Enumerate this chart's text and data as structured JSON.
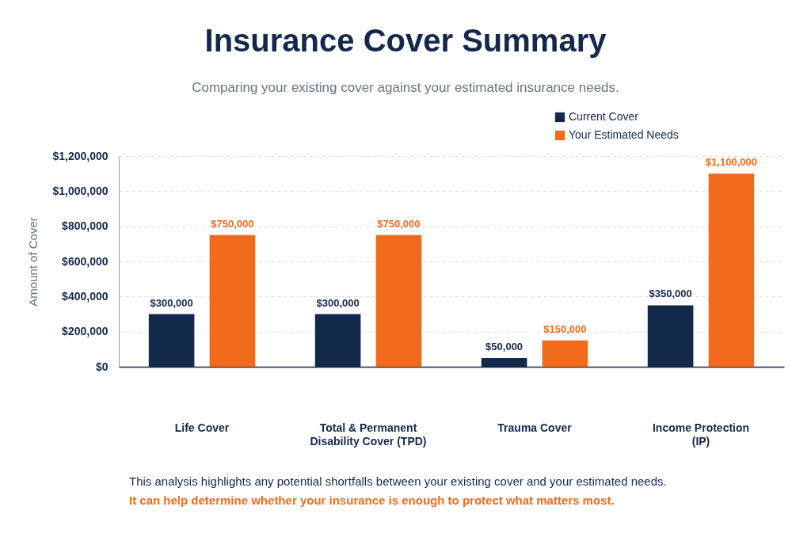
{
  "chart_data": {
    "type": "bar",
    "title": "Insurance Cover Summary",
    "subtitle": "Comparing your existing cover against your estimated insurance needs.",
    "ylabel": "Amount of Cover",
    "categories": [
      "Life Cover",
      "Total & Permanent\nDisability Cover (TPD)",
      "Trauma Cover",
      "Income Protection\n(IP)"
    ],
    "series": [
      {
        "name": "Current Cover",
        "color": "#13294b",
        "values": [
          300000,
          300000,
          50000,
          350000
        ],
        "value_labels": [
          "$300,000",
          "$300,000",
          "$50,000",
          "$350,000"
        ]
      },
      {
        "name": "Your Estimated Needs",
        "color": "#f26b1d",
        "values": [
          750000,
          750000,
          150000,
          1100000
        ],
        "value_labels": [
          "$750,000",
          "$750,000",
          "$150,000",
          "$1,100,000"
        ]
      }
    ],
    "ylim": [
      0,
      1200000
    ],
    "yticks": [
      {
        "value": 0,
        "label": "$0"
      },
      {
        "value": 200000,
        "label": "$200,000"
      },
      {
        "value": 400000,
        "label": "$400,000"
      },
      {
        "value": 600000,
        "label": "$600,000"
      },
      {
        "value": 800000,
        "label": "$800,000"
      },
      {
        "value": 1000000,
        "label": "$1,000,000"
      },
      {
        "value": 1200000,
        "label": "$1,200,000"
      }
    ],
    "grid": "y",
    "legend": "top right",
    "annotations": [
      "This analysis highlights any potential shortfalls between your existing cover and your estimated needs.",
      "It can help determine whether your insurance is enough to protect what matters most."
    ]
  }
}
